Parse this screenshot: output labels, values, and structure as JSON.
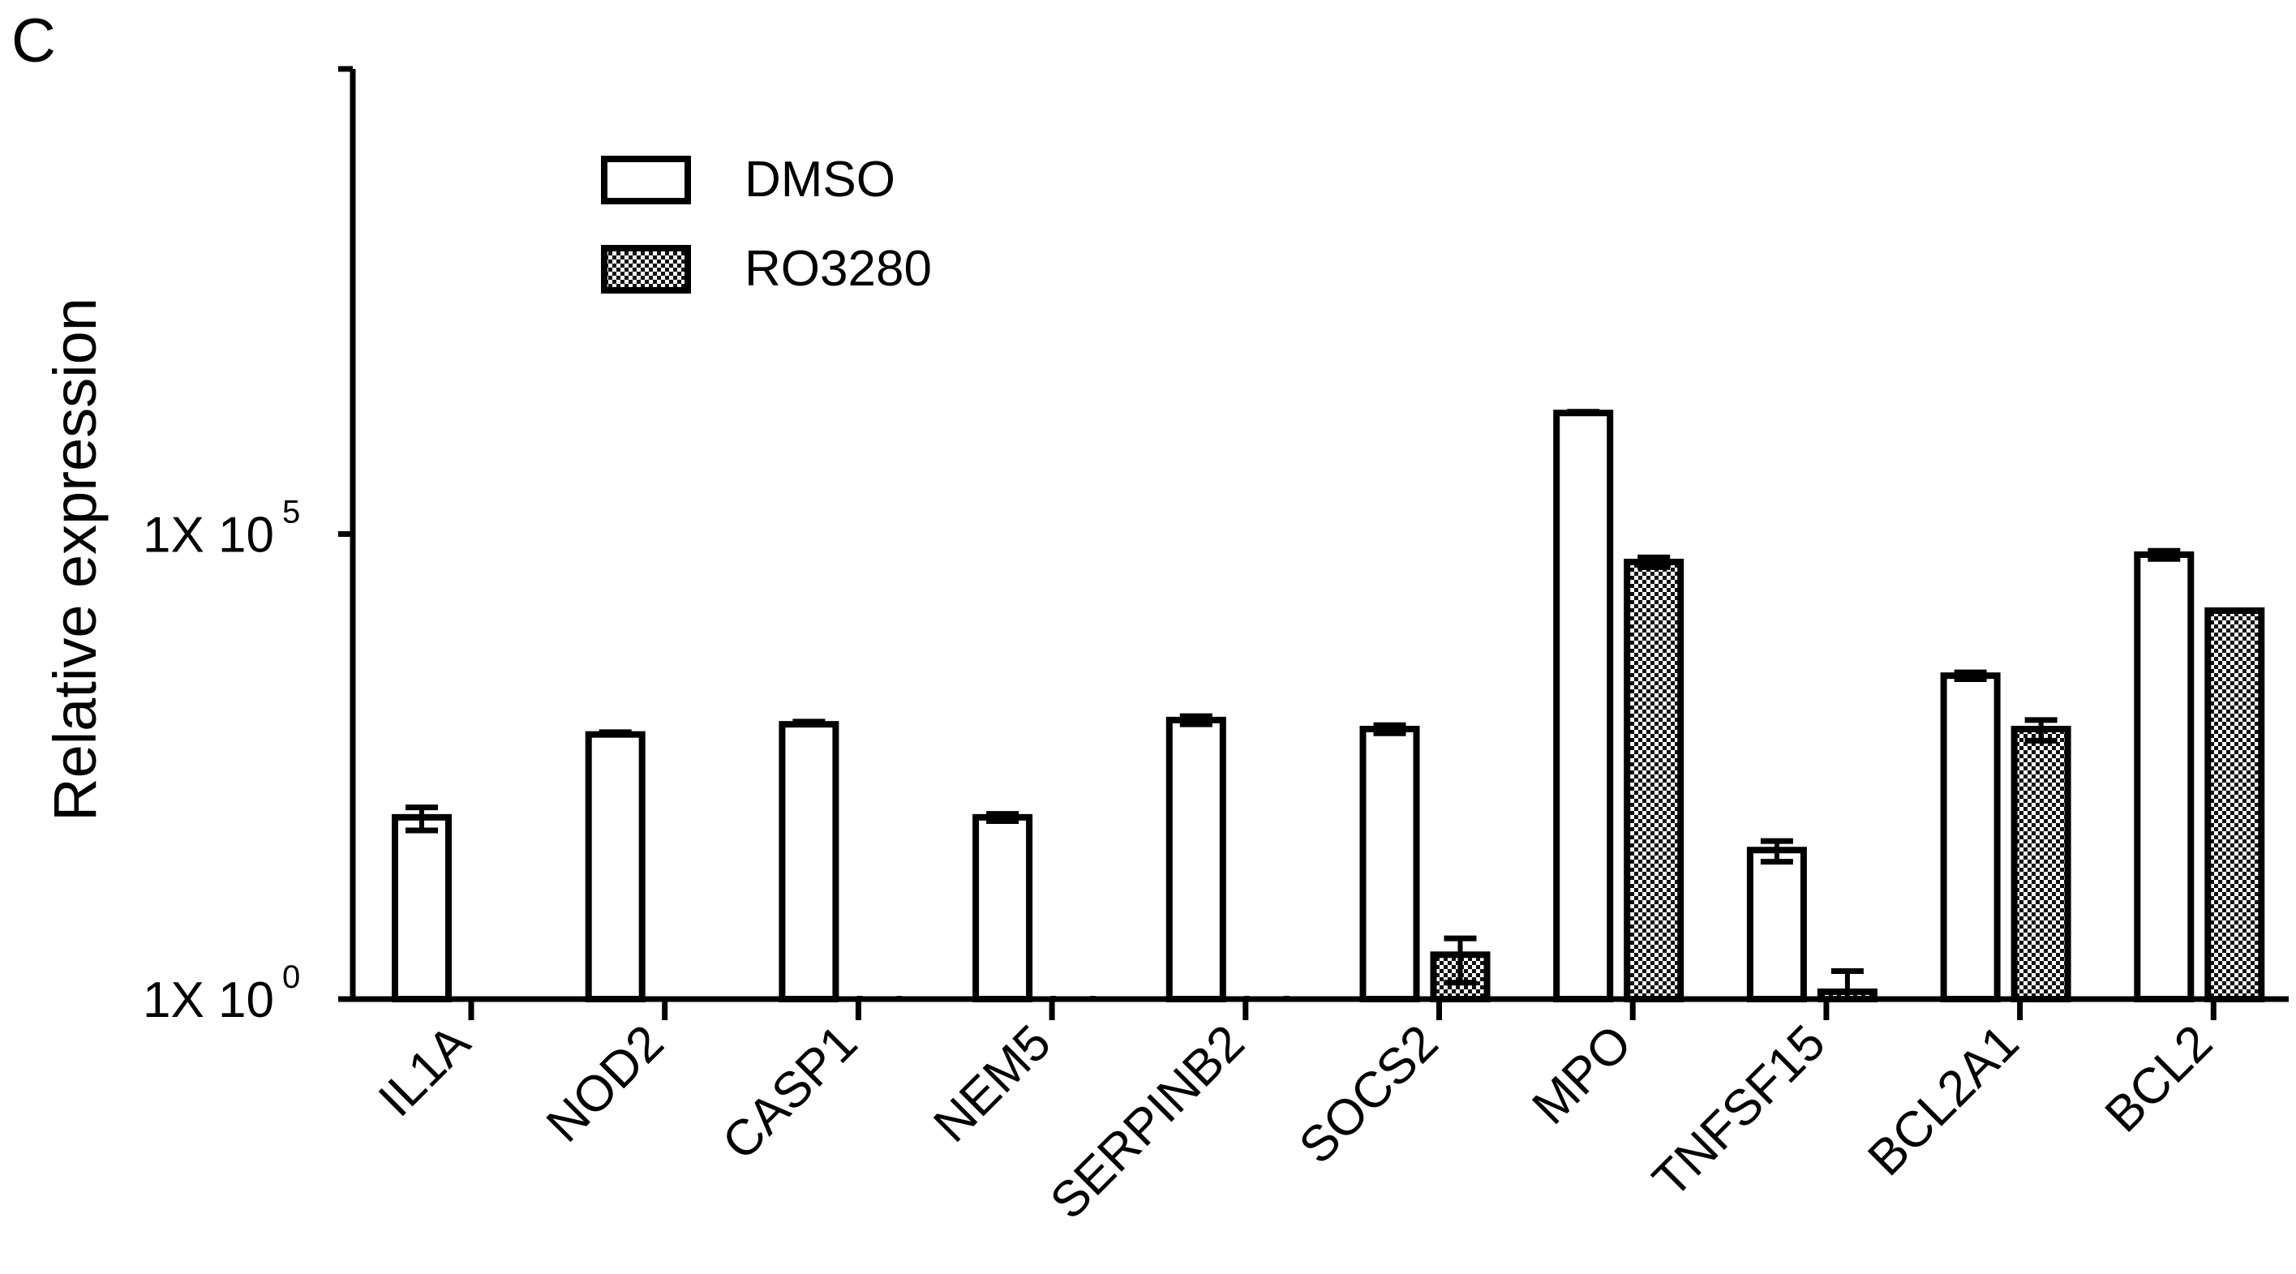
{
  "panel_label": "C",
  "chart_data": {
    "type": "bar",
    "title": "",
    "xlabel": "",
    "ylabel": "Relative expression",
    "yscale": "log",
    "ylim": [
      1,
      10000000000
    ],
    "yticks": [
      {
        "value": 1,
        "base": "1X 10",
        "exp": "0"
      },
      {
        "value": 100000,
        "base": "1X 10",
        "exp": "5"
      }
    ],
    "categories": [
      "IL1A",
      "NOD2",
      "CASP1",
      "NEM5",
      "SERPINB2",
      "SOCS2",
      "MPO",
      "TNFSF15",
      "BCL2A1",
      "BCL2"
    ],
    "series": [
      {
        "name": "DMSO",
        "pattern": "open",
        "values": [
          90,
          700,
          900,
          90,
          1000,
          800,
          2000000,
          40,
          3000,
          60000
        ],
        "errors": [
          25,
          40,
          60,
          8,
          100,
          80,
          60000,
          10,
          250,
          6000
        ]
      },
      {
        "name": "RO3280",
        "pattern": "checkered",
        "values": [
          null,
          null,
          1,
          1,
          1,
          3,
          50000,
          1.2,
          800,
          15000
        ],
        "errors": [
          null,
          null,
          0,
          0,
          0,
          1.5,
          6000,
          0.8,
          200,
          0
        ]
      }
    ],
    "legend": {
      "position": "top-left"
    },
    "colors": {
      "bar_edge": "#000000",
      "open_fill": "#ffffff",
      "check_dark": "#111111",
      "check_light": "#ffffff"
    }
  }
}
